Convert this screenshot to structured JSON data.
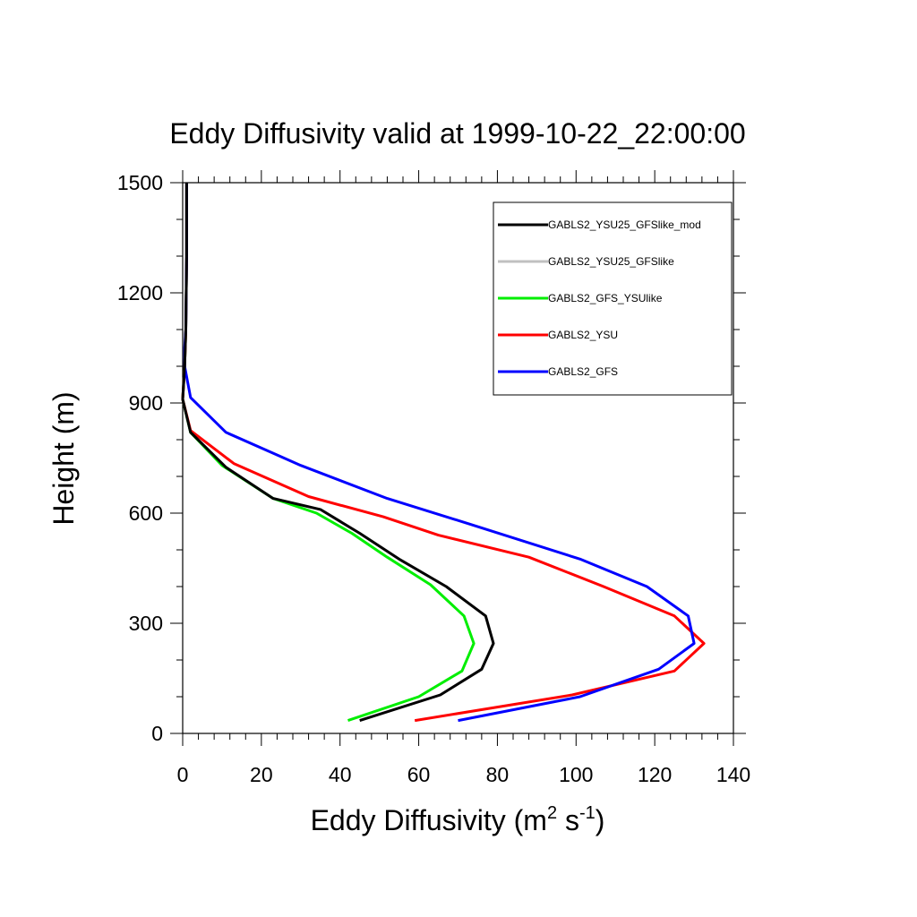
{
  "chart_data": {
    "type": "line",
    "title": "Eddy Diffusivity valid at 1999-10-22_22:00:00",
    "xlabel": {
      "base": "Eddy Diffusivity (m",
      "sup1": "2",
      "mid": " s",
      "sup2": "-1",
      "end": ")"
    },
    "ylabel": "Height (m)",
    "xlim": [
      0,
      140
    ],
    "ylim": [
      0,
      1500
    ],
    "xticks": [
      0,
      20,
      40,
      60,
      80,
      100,
      120,
      140
    ],
    "yticks": [
      0,
      300,
      600,
      900,
      1200,
      1500
    ],
    "legend_position": "top-right",
    "series": [
      {
        "name": "GABLS2_YSU25_GFSlike_mod",
        "color": "#000000",
        "x": [
          45,
          65.5,
          76,
          79,
          77,
          67,
          55,
          45,
          35,
          23,
          11,
          2,
          0,
          0.5,
          0.8,
          1,
          1
        ],
        "y": [
          35,
          105,
          175,
          245,
          320,
          400,
          475,
          545,
          610,
          640,
          725,
          820,
          910,
          1000,
          1100,
          1300,
          1500
        ]
      },
      {
        "name": "GABLS2_YSU25_GFSlike",
        "color": "#c0c0c0",
        "x": [
          45,
          65.5,
          76,
          79,
          77,
          67,
          55,
          45,
          35,
          23,
          11,
          2,
          0,
          0.5,
          0.8,
          1,
          1
        ],
        "y": [
          35,
          105,
          175,
          245,
          320,
          400,
          475,
          545,
          610,
          640,
          725,
          820,
          910,
          1000,
          1100,
          1300,
          1500
        ]
      },
      {
        "name": "GABLS2_GFS_YSUlike",
        "color": "#00ee00",
        "x": [
          42,
          60,
          71,
          74,
          71.5,
          63,
          52,
          43,
          34,
          23,
          10,
          2,
          0,
          0.5,
          0.8,
          1,
          1
        ],
        "y": [
          35,
          100,
          170,
          245,
          320,
          405,
          480,
          545,
          600,
          640,
          730,
          820,
          910,
          1000,
          1100,
          1300,
          1500
        ]
      },
      {
        "name": "GABLS2_YSU",
        "color": "#ff0000",
        "x": [
          59,
          99,
          125,
          132.5,
          125,
          107,
          88,
          65,
          51,
          32,
          13,
          2,
          0,
          0.5,
          0.8,
          1,
          1
        ],
        "y": [
          35,
          105,
          170,
          245,
          320,
          400,
          480,
          540,
          590,
          645,
          735,
          825,
          910,
          1000,
          1100,
          1300,
          1500
        ]
      },
      {
        "name": "GABLS2_GFS",
        "color": "#0000ff",
        "x": [
          70,
          101,
          121,
          130,
          128.5,
          118,
          101,
          73,
          52,
          30,
          11,
          2,
          0.5,
          0.5,
          0.8,
          1,
          1
        ],
        "y": [
          35,
          100,
          175,
          245,
          320,
          400,
          475,
          570,
          640,
          730,
          820,
          915,
          1000,
          1050,
          1100,
          1300,
          1500
        ]
      }
    ]
  }
}
